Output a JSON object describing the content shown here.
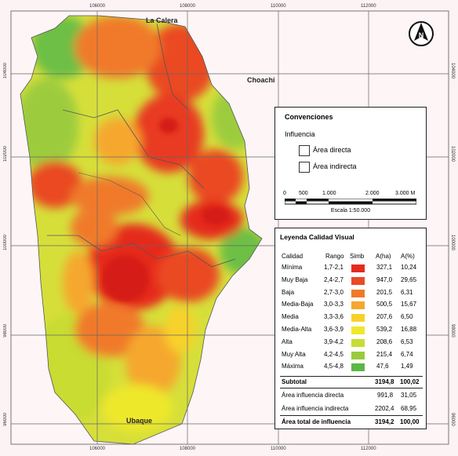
{
  "map": {
    "place_names": {
      "north": "La Calera",
      "east": "Choachi",
      "south": "Ubaque"
    },
    "coordinates": {
      "top_x": [
        "106000",
        "108000",
        "110000",
        "112000"
      ],
      "bottom_x": [
        "106000",
        "108000",
        "110000",
        "112000"
      ],
      "left_y": [
        "104000",
        "102000",
        "100000",
        "98000",
        "96000"
      ],
      "right_y": [
        "104000",
        "102000",
        "100000",
        "98000",
        "96000"
      ]
    },
    "north_arrow_letter": "N",
    "north_arrow_icon": "north-arrow-icon"
  },
  "conventions": {
    "title": "Convenciones",
    "influence_label": "Influencia",
    "items": [
      {
        "label": "Área directa"
      },
      {
        "label": "Área indirecta"
      }
    ],
    "scale": {
      "ticks": [
        "0",
        "500",
        "1.000",
        "2.000",
        "3.000 M"
      ],
      "caption": "Escala 1:50.000"
    }
  },
  "legend": {
    "title": "Leyenda Calidad Visual",
    "headers": {
      "calidad": "Calidad",
      "rango": "Rango",
      "simb": "Simb",
      "area_ha": "A(ha)",
      "area_pct": "A(%)"
    },
    "classes": [
      {
        "calidad": "Mínima",
        "rango": "1,7-2,1",
        "color": "#e52a1e",
        "area_ha": "327,1",
        "area_pct": "10,24"
      },
      {
        "calidad": "Muy Baja",
        "rango": "2,4-2,7",
        "color": "#ea4a24",
        "area_ha": "947,0",
        "area_pct": "29,65"
      },
      {
        "calidad": "Baja",
        "rango": "2,7-3,0",
        "color": "#f07a2a",
        "area_ha": "201,5",
        "area_pct": "6,31"
      },
      {
        "calidad": "Media-Baja",
        "rango": "3,0-3,3",
        "color": "#f6a72e",
        "area_ha": "500,5",
        "area_pct": "15,67"
      },
      {
        "calidad": "Media",
        "rango": "3,3-3,6",
        "color": "#f7d12a",
        "area_ha": "207,6",
        "area_pct": "6,50"
      },
      {
        "calidad": "Media-Alta",
        "rango": "3,6-3,9",
        "color": "#eee82a",
        "area_ha": "539,2",
        "area_pct": "16,88"
      },
      {
        "calidad": "Alta",
        "rango": "3,9-4,2",
        "color": "#c8dc32",
        "area_ha": "208,6",
        "area_pct": "6,53"
      },
      {
        "calidad": "Muy Alta",
        "rango": "4,2-4,5",
        "color": "#9acb3c",
        "area_ha": "215,4",
        "area_pct": "6,74"
      },
      {
        "calidad": "Máxima",
        "rango": "4,5-4,8",
        "color": "#5ab846",
        "area_ha": "47,6",
        "area_pct": "1,49"
      }
    ],
    "subtotal": {
      "label": "Subtotal",
      "area_ha": "3194,8",
      "area_pct": "100,02"
    },
    "direct": {
      "label": "Área influencia directa",
      "area_ha": "991,8",
      "area_pct": "31,05"
    },
    "indirect": {
      "label": "Área influencia indirecta",
      "area_ha": "2202,4",
      "area_pct": "68,95"
    },
    "total": {
      "label": "Área total de influencia",
      "area_ha": "3194,2",
      "area_pct": "100,00"
    }
  }
}
